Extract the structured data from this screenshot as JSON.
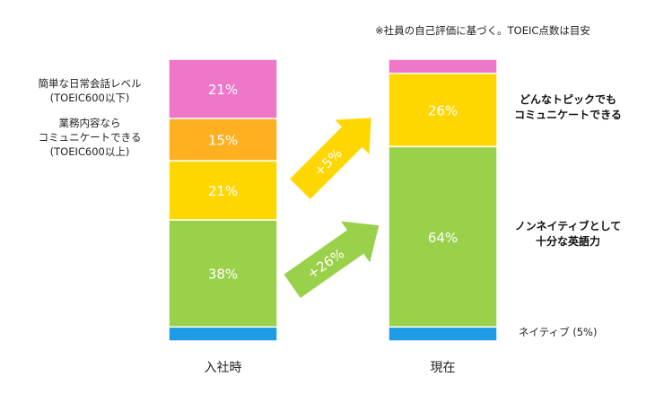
{
  "note": "※社員の自己評価に基づく。TOEIC点数は目安",
  "left_labels": {
    "daily": [
      "簡単な日常会話レベル",
      "(TOEIC600以下)"
    ],
    "business": [
      "業務内容なら",
      "コミュニケートできる",
      "(TOEIC600以上)"
    ]
  },
  "right_labels": {
    "any_topic": [
      "どんなトピックでも",
      "コミュニケートできる"
    ],
    "non_native": [
      "ノンネイティブとして",
      "十分な英語力"
    ],
    "native": "ネイティブ (5%)"
  },
  "arrows": {
    "upper": "+5%",
    "lower": "+26%",
    "upper_color": "#FFD700",
    "lower_color": "#99D14A"
  },
  "chart_data": {
    "type": "bar",
    "stacked": true,
    "categories": [
      "入社時",
      "現在"
    ],
    "series": [
      {
        "values": [
          5,
          5
        ],
        "color": "#1E9BE6",
        "labels": [
          "",
          ""
        ]
      },
      {
        "values": [
          38,
          64
        ],
        "color": "#99D14A",
        "labels": [
          "38%",
          "64%"
        ]
      },
      {
        "values": [
          21,
          26
        ],
        "color": "#FFD700",
        "labels": [
          "21%",
          "26%"
        ]
      },
      {
        "values": [
          15,
          0
        ],
        "color": "#FFB020",
        "labels": [
          "15%",
          ""
        ]
      },
      {
        "values": [
          21,
          5
        ],
        "color": "#EE77C8",
        "labels": [
          "21%",
          ""
        ]
      }
    ]
  }
}
